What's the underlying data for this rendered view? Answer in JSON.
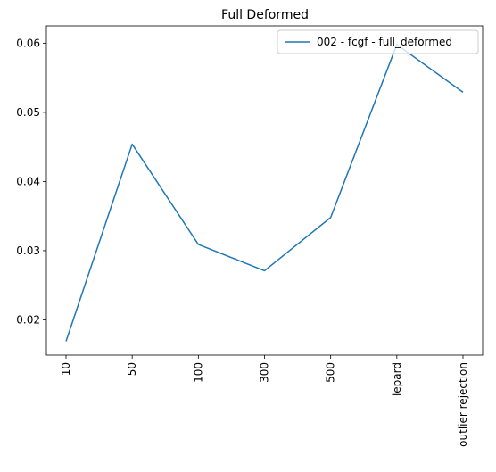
{
  "chart_data": {
    "type": "line",
    "title": "Full Deformed",
    "xlabel": "",
    "ylabel": "",
    "categories": [
      "10",
      "50",
      "100",
      "300",
      "500",
      "lepard",
      "outlier rejection"
    ],
    "series": [
      {
        "name": "002 - fcgf - full_deformed",
        "values": [
          0.0169,
          0.0454,
          0.0309,
          0.0271,
          0.0348,
          0.0598,
          0.0529
        ],
        "color": "#1f77b4"
      }
    ],
    "ylim": [
      0.0149,
      0.0625
    ],
    "yticks": [
      0.02,
      0.03,
      0.04,
      0.05,
      0.06
    ],
    "ytick_labels": [
      "0.02",
      "0.03",
      "0.04",
      "0.05",
      "0.06"
    ],
    "xtick_rotation": 90,
    "grid": false,
    "legend_position": "top-right"
  }
}
